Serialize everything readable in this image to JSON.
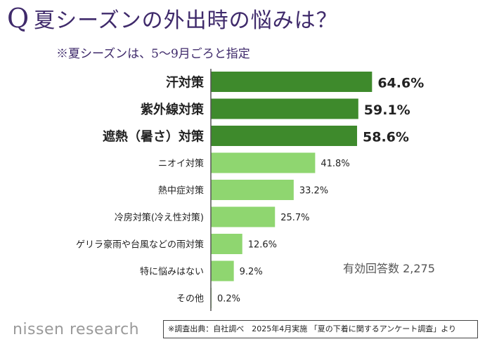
{
  "header": {
    "q_mark": "Q",
    "title": "夏シーズンの外出時の悩みは？",
    "subtitle": "※夏シーズンは、5〜9月ごろと指定"
  },
  "chart_data": {
    "type": "bar",
    "orientation": "horizontal",
    "categories": [
      "汗対策",
      "紫外線対策",
      "遮熱（暑さ）対策",
      "ニオイ対策",
      "熱中症対策",
      "冷房対策(冷え性対策)",
      "ゲリラ豪雨や台風などの雨対策",
      "特に悩みはない",
      "その他"
    ],
    "values": [
      64.6,
      59.1,
      58.6,
      41.8,
      33.2,
      25.7,
      12.6,
      9.2,
      0.2
    ],
    "value_labels": [
      "64.6%",
      "59.1%",
      "58.6%",
      "41.8%",
      "33.2%",
      "25.7%",
      "12.6%",
      "9.2%",
      "0.2%"
    ],
    "highlight_count": 3,
    "colors": {
      "highlight": "#3e8a2c",
      "normal": "#8fd670",
      "axis": "#555555"
    },
    "respondents_note": "有効回答数 2,275",
    "xlim": [
      0,
      100
    ]
  },
  "footer": {
    "logo": "nissen research",
    "source": "※調査出典：自社調べ　2025年4月実施 「夏の下着に関するアンケート調査」より"
  }
}
